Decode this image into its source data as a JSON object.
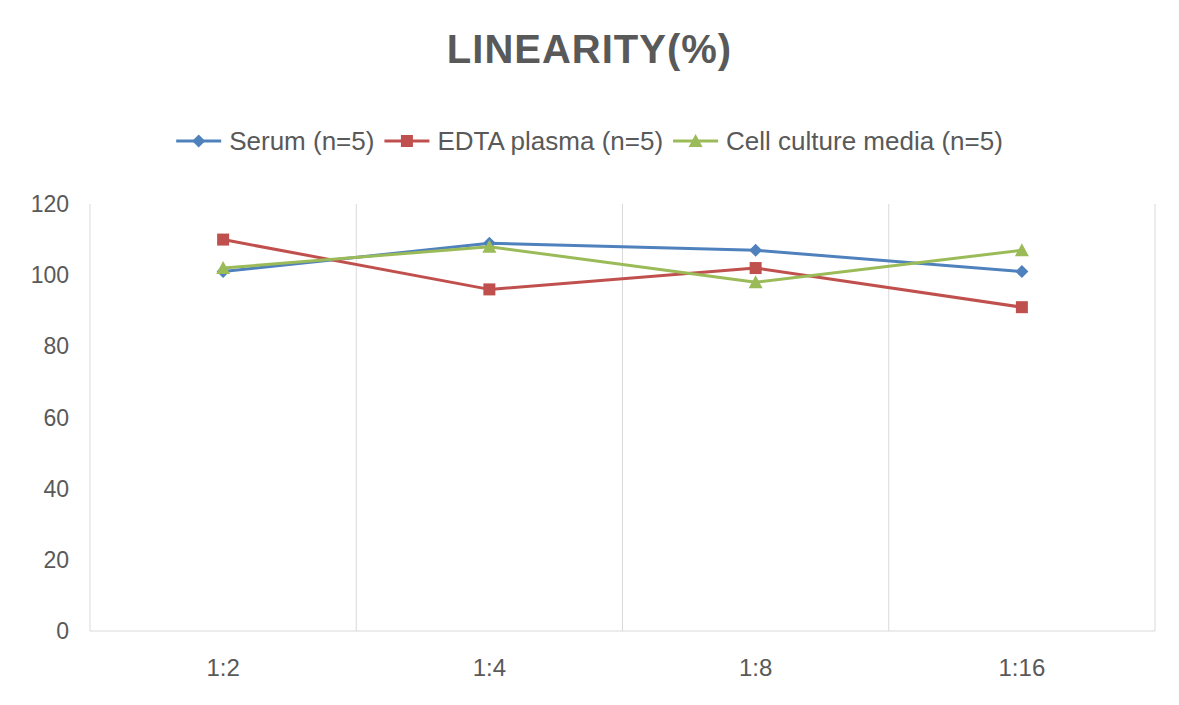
{
  "chart_data": {
    "type": "line",
    "title": "LINEARITY(%)",
    "categories": [
      "1:2",
      "1:4",
      "1:8",
      "1:16"
    ],
    "series": [
      {
        "name": "Serum (n=5)",
        "color": "#4f81bd",
        "marker": "diamond",
        "values": [
          101,
          109,
          107,
          101
        ]
      },
      {
        "name": "EDTA plasma (n=5)",
        "color": "#c0504d",
        "marker": "square",
        "values": [
          110,
          96,
          102,
          91
        ]
      },
      {
        "name": "Cell culture media (n=5)",
        "color": "#9bbb59",
        "marker": "triangle",
        "values": [
          102,
          108,
          98,
          107
        ]
      }
    ],
    "ylim": [
      0,
      120
    ],
    "yticks": [
      0,
      20,
      40,
      60,
      80,
      100,
      120
    ],
    "grid": true,
    "legend": "top"
  }
}
